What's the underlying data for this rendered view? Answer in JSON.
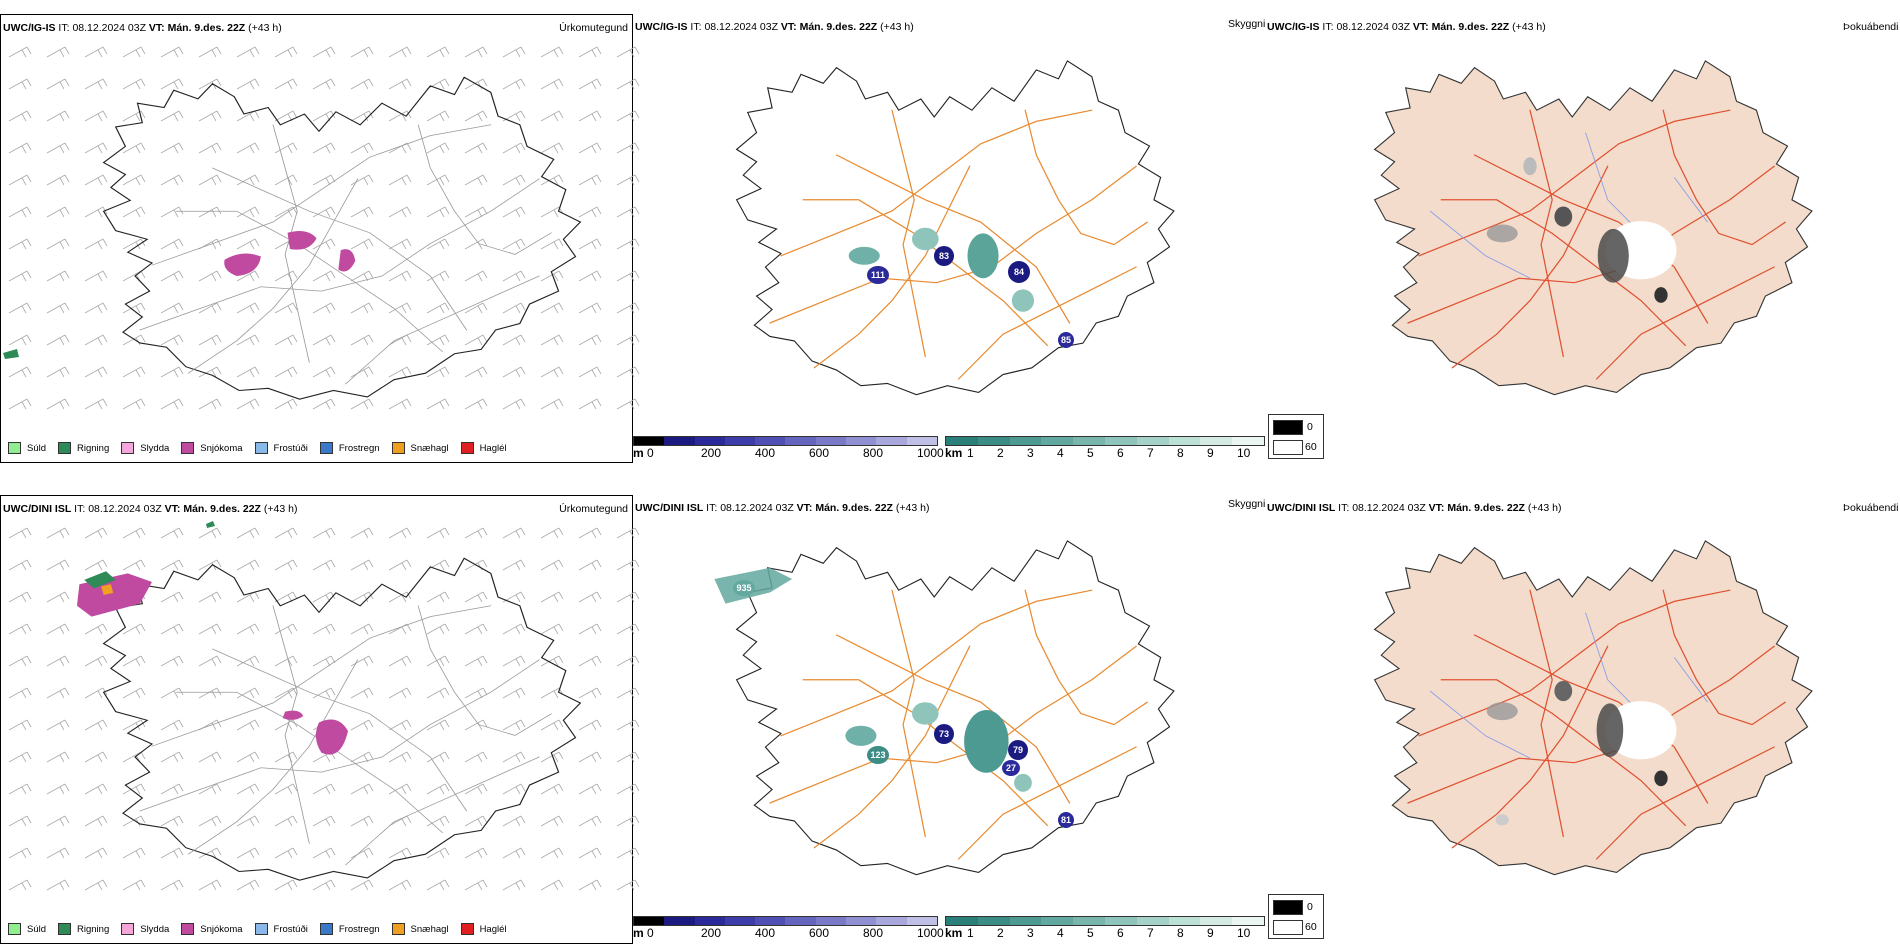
{
  "rows": [
    {
      "model": "UWC/IG-IS",
      "it_label": "IT:",
      "it_value": "08.12.2024 03Z",
      "vt_label": "VT:",
      "vt_value": "Mán. 9.des. 22Z",
      "lead": "(+43 h)",
      "cell_labels": [
        "111",
        "83",
        "84",
        "85"
      ]
    },
    {
      "model": "UWC/DINI ISL",
      "it_label": "IT:",
      "it_value": "08.12.2024 03Z",
      "vt_label": "VT:",
      "vt_value": "Mán. 9.des. 22Z",
      "lead": "(+43 h)",
      "cell_labels": [
        "935",
        "123",
        "73",
        "79",
        "27",
        "81"
      ]
    }
  ],
  "panels": {
    "precip_type": "Úrkomutegund",
    "visibility": "Skyggni",
    "fog_index": "Þokuábendi"
  },
  "precip_legend": [
    {
      "label": "Súld",
      "color": "#90ee90"
    },
    {
      "label": "Rigning",
      "color": "#2e8b57"
    },
    {
      "label": "Slydda",
      "color": "#f4a6d7"
    },
    {
      "label": "Snjókoma",
      "color": "#c04aa0"
    },
    {
      "label": "Frostúði",
      "color": "#8ab8e8"
    },
    {
      "label": "Frostregn",
      "color": "#3a78c8"
    },
    {
      "label": "Snæhagl",
      "color": "#f0a020"
    },
    {
      "label": "Haglél",
      "color": "#e02020"
    }
  ],
  "vis_scale_m": {
    "unit": "m",
    "ticks": [
      "0",
      "200",
      "400",
      "600",
      "800",
      "1000"
    ],
    "colors": [
      "#000000",
      "#1a1a80",
      "#2a2a9a",
      "#3d3daa",
      "#5050b4",
      "#6565be",
      "#7a7ac8",
      "#9090d2",
      "#a8a8dc",
      "#c0c0e6"
    ]
  },
  "vis_scale_km": {
    "unit": "km",
    "ticks": [
      "1",
      "2",
      "3",
      "4",
      "5",
      "6",
      "7",
      "8",
      "9",
      "10"
    ],
    "colors": [
      "#2a7f78",
      "#3a8c85",
      "#4d9a92",
      "#62a89f",
      "#78b6ac",
      "#8ec4ba",
      "#a5d2c8",
      "#bcdfd6",
      "#d4ebe4",
      "#ebf6f2"
    ]
  },
  "fog_legend": {
    "labels": [
      "0",
      "60"
    ],
    "colors": [
      "#000000",
      "#ffffff"
    ]
  }
}
